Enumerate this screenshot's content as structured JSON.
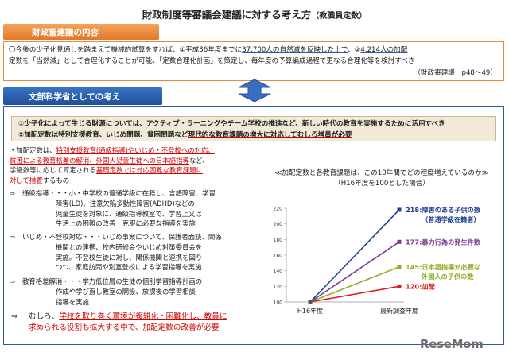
{
  "title": {
    "main": "財政制度等審議会建議に対する考え方",
    "sub": "（教職員定数）"
  },
  "mof_section": {
    "heading": "財政審建議の内容",
    "line1_a": "〇今後の少子化見通しを踏まえて機械的試算をすれば、①平成36年度までに",
    "line1_b": "37,700人の自然減を反映した上で",
    "line1_c": "、②",
    "line1_d": "4,214人の加配",
    "line2_a": "定数を「当然減」として合理化",
    "line2_b": "することが可能。",
    "line2_c": "「定数合理化計画」を策定し、毎年度の予算編成過程で更なる合理化等を検討すべき",
    "reference": "（財政審建議　p48～49）"
  },
  "mext_section": {
    "heading": "文部科学省としての考え",
    "policy1": "①少子化によって生じる財源については、アクティブ・ラーニングやチーム学校の推進など、新しい時代の教育を実施するために活用すべき",
    "policy2_a": "②加配定数は特別支援教育、いじめ問題、貧困問題など",
    "policy2_b": "現代的な教育課題の増大に対応してむしろ増員が必要"
  },
  "body": {
    "p1_a": "・加配定数は、",
    "p1_b": "特別支援教育(通級指導)やいじめ・不登校への対応、",
    "p1_c": "貧困による教育格差の解消、外国人児童生徒への日本語指導",
    "p1_d": "など、",
    "p1_e": "学級数等に応じて算定される",
    "p1_f": "基礎定数では対応困難な教育課題に",
    "p1_g": "対して措置",
    "p1_h": "するもの",
    "items": [
      {
        "arrow": "⇒",
        "lines": [
          "通級指導・・・小・中学校の普通学級に在籍し、言語障害、学習",
          "障害(LD)、注意欠陥多動性障害(ADHD)などの",
          "児童生徒を対象に、通級指導教室で、学習上又は",
          "生活上の困難の改善・克服に必要な指導を実施"
        ]
      },
      {
        "arrow": "⇒",
        "lines": [
          "いじめ・不登校対応・・・いじめ事案について、保護者面談、関係",
          "機関との連携、校内研修会やいじめ対策委員会を",
          "実施。不登校生徒に対し、関係機関と連携を図り",
          "つつ、家庭訪問や別室登校による学習指導を実施"
        ]
      },
      {
        "arrow": "⇒",
        "lines": [
          "教育格差解消・・・学力低位層の生徒の個別学習指導計画の",
          "作成や学び直し教室の開設、放課後の学習相談",
          "指導を実施"
        ]
      }
    ],
    "conclusion_arrow": "⇒",
    "conclusion_a": "むしろ、",
    "conclusion_b": "学校を取り巻く環境が複雑化・困難化し、教員に",
    "conclusion_c": "求められる役割も拡大する中で、加配定数の改善が必要"
  },
  "chart_data": {
    "type": "line",
    "title": "≪加配定数と各教育課題は、この10年間でどの程度増えているのか≫",
    "subtitle": "（H16年度を100とした場合）",
    "categories": [
      "H16年度",
      "最新調査年度"
    ],
    "ylim": [
      100,
      220
    ],
    "yticks": [
      100,
      120,
      140,
      160,
      180,
      200,
      220
    ],
    "series": [
      {
        "name": "障害のある子供の数（普通学級在籍者）",
        "label": "218:障害のある子供の数",
        "label2": "（普通学級在籍者）",
        "values": [
          100,
          218
        ],
        "color": "#1f3f8f"
      },
      {
        "name": "暴力行為の発生件数",
        "label": "177:暴力行為の発生件数",
        "label2": "",
        "values": [
          100,
          177
        ],
        "color": "#7a3b94"
      },
      {
        "name": "日本語指導が必要な外国人の子供の数",
        "label": "145:日本語指導が必要な",
        "label2": "外国人の子供の数",
        "values": [
          100,
          145
        ],
        "color": "#8fae2a"
      },
      {
        "name": "加配",
        "label": "120:加配",
        "label2": "",
        "values": [
          100,
          120
        ],
        "color": "#d92020"
      }
    ]
  },
  "logo": {
    "text": "ReseMom"
  },
  "colors": {
    "orange": "#e88a3a",
    "blue": "#2c5aa0",
    "red": "#d40000"
  }
}
